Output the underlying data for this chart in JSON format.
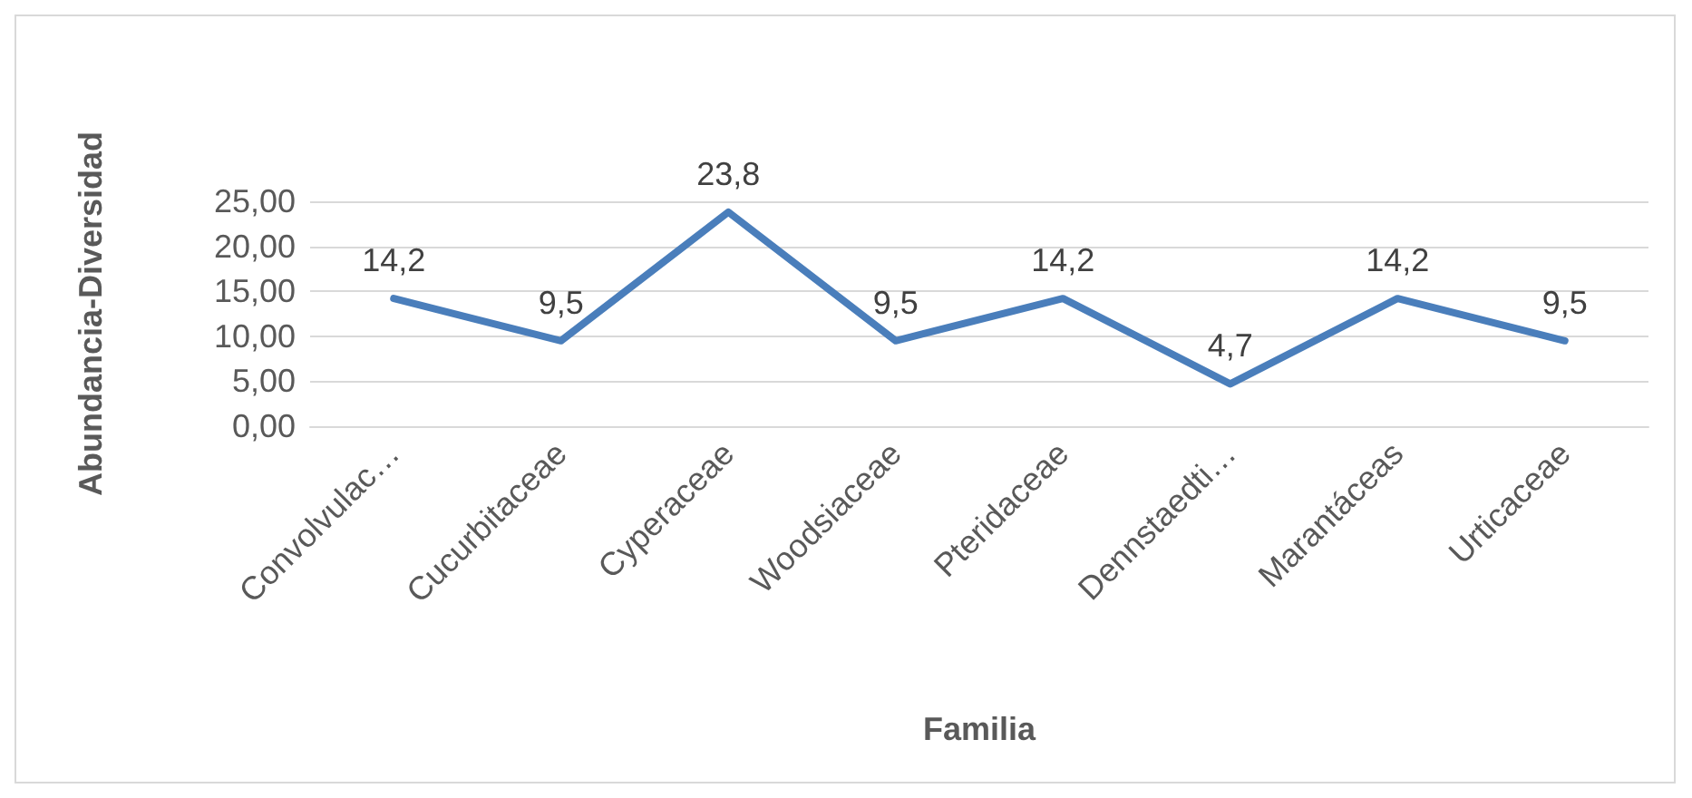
{
  "chart_data": {
    "type": "line",
    "xlabel": "Familia",
    "ylabel": "Abundancia-Diversidad",
    "categories": [
      "Convolvulac…",
      "Cucurbitaceae",
      "Cyperaceae",
      "Woodsiaceae",
      "Pteridaceae",
      "Dennstaedti…",
      "Marantáceas",
      "Urticaceae"
    ],
    "series": [
      {
        "color": "#4a7ebb",
        "values": [
          14.2,
          9.5,
          23.8,
          9.5,
          14.2,
          4.7,
          14.2,
          9.5
        ],
        "value_labels": [
          "14,2",
          "9,5",
          "23,8",
          "9,5",
          "14,2",
          "4,7",
          "14,2",
          "9,5"
        ]
      }
    ],
    "ylim": [
      0,
      25
    ],
    "yticks": [
      {
        "value": 0,
        "label": "0,00"
      },
      {
        "value": 5,
        "label": "5,00"
      },
      {
        "value": 10,
        "label": "10,00"
      },
      {
        "value": 15,
        "label": "15,00"
      },
      {
        "value": 20,
        "label": "20,00"
      },
      {
        "value": 25,
        "label": "25,00"
      }
    ],
    "grid": "y",
    "marker": "none",
    "line_style": "solid"
  }
}
